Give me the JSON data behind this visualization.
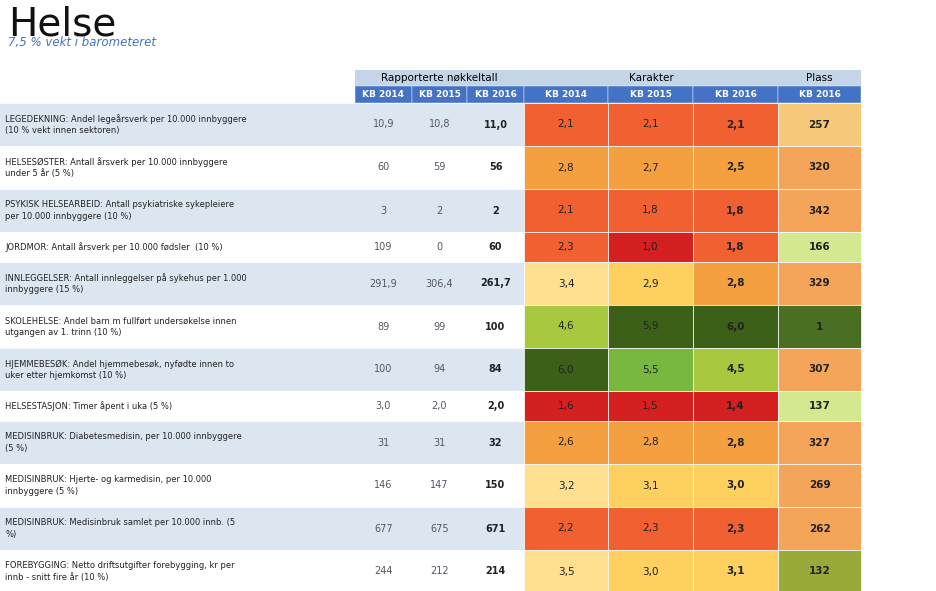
{
  "title": "Helse",
  "subtitle": "7,5 % vekt i barometeret",
  "rows": [
    {
      "label": "LEGEDEKNING: Andel legeårsverk per 10.000 innbyggere\n(10 % vekt innen sektoren)",
      "nøkkeltall": [
        "10,9",
        "10,8",
        "11,0"
      ],
      "karakter": [
        2.1,
        2.1,
        2.1
      ],
      "karakter_str": [
        "2,1",
        "2,1",
        "2,1"
      ],
      "plass": 257
    },
    {
      "label": "HELSESØSTER: Antall årsverk per 10.000 innbyggere\nunder 5 år (5 %)",
      "nøkkeltall": [
        "60",
        "59",
        "56"
      ],
      "karakter": [
        2.8,
        2.7,
        2.5
      ],
      "karakter_str": [
        "2,8",
        "2,7",
        "2,5"
      ],
      "plass": 320
    },
    {
      "label": "PSYKISK HELSEARBEID: Antall psykiatriske sykepleiere\nper 10.000 innbyggere (10 %)",
      "nøkkeltall": [
        "3",
        "2",
        "2"
      ],
      "karakter": [
        2.1,
        1.8,
        1.8
      ],
      "karakter_str": [
        "2,1",
        "1,8",
        "1,8"
      ],
      "plass": 342
    },
    {
      "label": "JORDMOR: Antall årsverk per 10.000 fødsler  (10 %)",
      "nøkkeltall": [
        "109",
        "0",
        "60"
      ],
      "karakter": [
        2.3,
        1.0,
        1.8
      ],
      "karakter_str": [
        "2,3",
        "1,0",
        "1,8"
      ],
      "plass": 166
    },
    {
      "label": "INNLEGGELSER: Antall innleggelser på sykehus per 1.000\ninnbyggere (15 %)",
      "nøkkeltall": [
        "291,9",
        "306,4",
        "261,7"
      ],
      "karakter": [
        3.4,
        2.9,
        2.8
      ],
      "karakter_str": [
        "3,4",
        "2,9",
        "2,8"
      ],
      "plass": 329
    },
    {
      "label": "SKOLEHELSE: Andel barn m fullført undersøkelse innen\nutgangen av 1. trinn (10 %)",
      "nøkkeltall": [
        "89",
        "99",
        "100"
      ],
      "karakter": [
        4.6,
        5.9,
        6.0
      ],
      "karakter_str": [
        "4,6",
        "5,9",
        "6,0"
      ],
      "plass": 1
    },
    {
      "label": "HJEMMEBESØK: Andel hjemmebesøk, nyfødte innen to\nuker etter hjemkomst (10 %)",
      "nøkkeltall": [
        "100",
        "94",
        "84"
      ],
      "karakter": [
        6.0,
        5.5,
        4.5
      ],
      "karakter_str": [
        "6,0",
        "5,5",
        "4,5"
      ],
      "plass": 307
    },
    {
      "label": "HELSESTASJON: Timer åpent i uka (5 %)",
      "nøkkeltall": [
        "3,0",
        "2,0",
        "2,0"
      ],
      "karakter": [
        1.6,
        1.5,
        1.4
      ],
      "karakter_str": [
        "1,6",
        "1,5",
        "1,4"
      ],
      "plass": 137
    },
    {
      "label": "MEDISINBRUK: Diabetesmedisin, per 10.000 innbyggere\n(5 %)",
      "nøkkeltall": [
        "31",
        "31",
        "32"
      ],
      "karakter": [
        2.6,
        2.8,
        2.8
      ],
      "karakter_str": [
        "2,6",
        "2,8",
        "2,8"
      ],
      "plass": 327
    },
    {
      "label": "MEDISINBRUK: Hjerte- og karmedisin, per 10.000\ninnbyggere (5 %)",
      "nøkkeltall": [
        "146",
        "147",
        "150"
      ],
      "karakter": [
        3.2,
        3.1,
        3.0
      ],
      "karakter_str": [
        "3,2",
        "3,1",
        "3,0"
      ],
      "plass": 269
    },
    {
      "label": "MEDISINBRUK: Medisinbruk samlet per 10.000 innb. (5\n%)",
      "nøkkeltall": [
        "677",
        "675",
        "671"
      ],
      "karakter": [
        2.2,
        2.3,
        2.3
      ],
      "karakter_str": [
        "2,2",
        "2,3",
        "2,3"
      ],
      "plass": 262
    },
    {
      "label": "FOREBYGGING: Netto driftsutgifter forebygging, kr per\ninnb - snitt fire år (10 %)",
      "nøkkeltall": [
        "244",
        "212",
        "214"
      ],
      "karakter": [
        3.5,
        3.0,
        3.1
      ],
      "karakter_str": [
        "3,5",
        "3,0",
        "3,1"
      ],
      "plass": 132
    }
  ],
  "header_bg_light": "#c5d5e8",
  "header_bg_dark": "#4472c4",
  "row_bg_even": "#dce6f1",
  "row_bg_odd": "#ffffff",
  "plass_colors": {
    "257": "#f5c87a",
    "320": "#f4a55a",
    "342": "#f4a55a",
    "166": "#d4e890",
    "329": "#f4a55a",
    "1": "#4a6e22",
    "307": "#f4a55a",
    "137": "#d4e890",
    "327": "#f4a55a",
    "269": "#f4a55a",
    "262": "#f4a55a",
    "132": "#9aaa3a"
  }
}
